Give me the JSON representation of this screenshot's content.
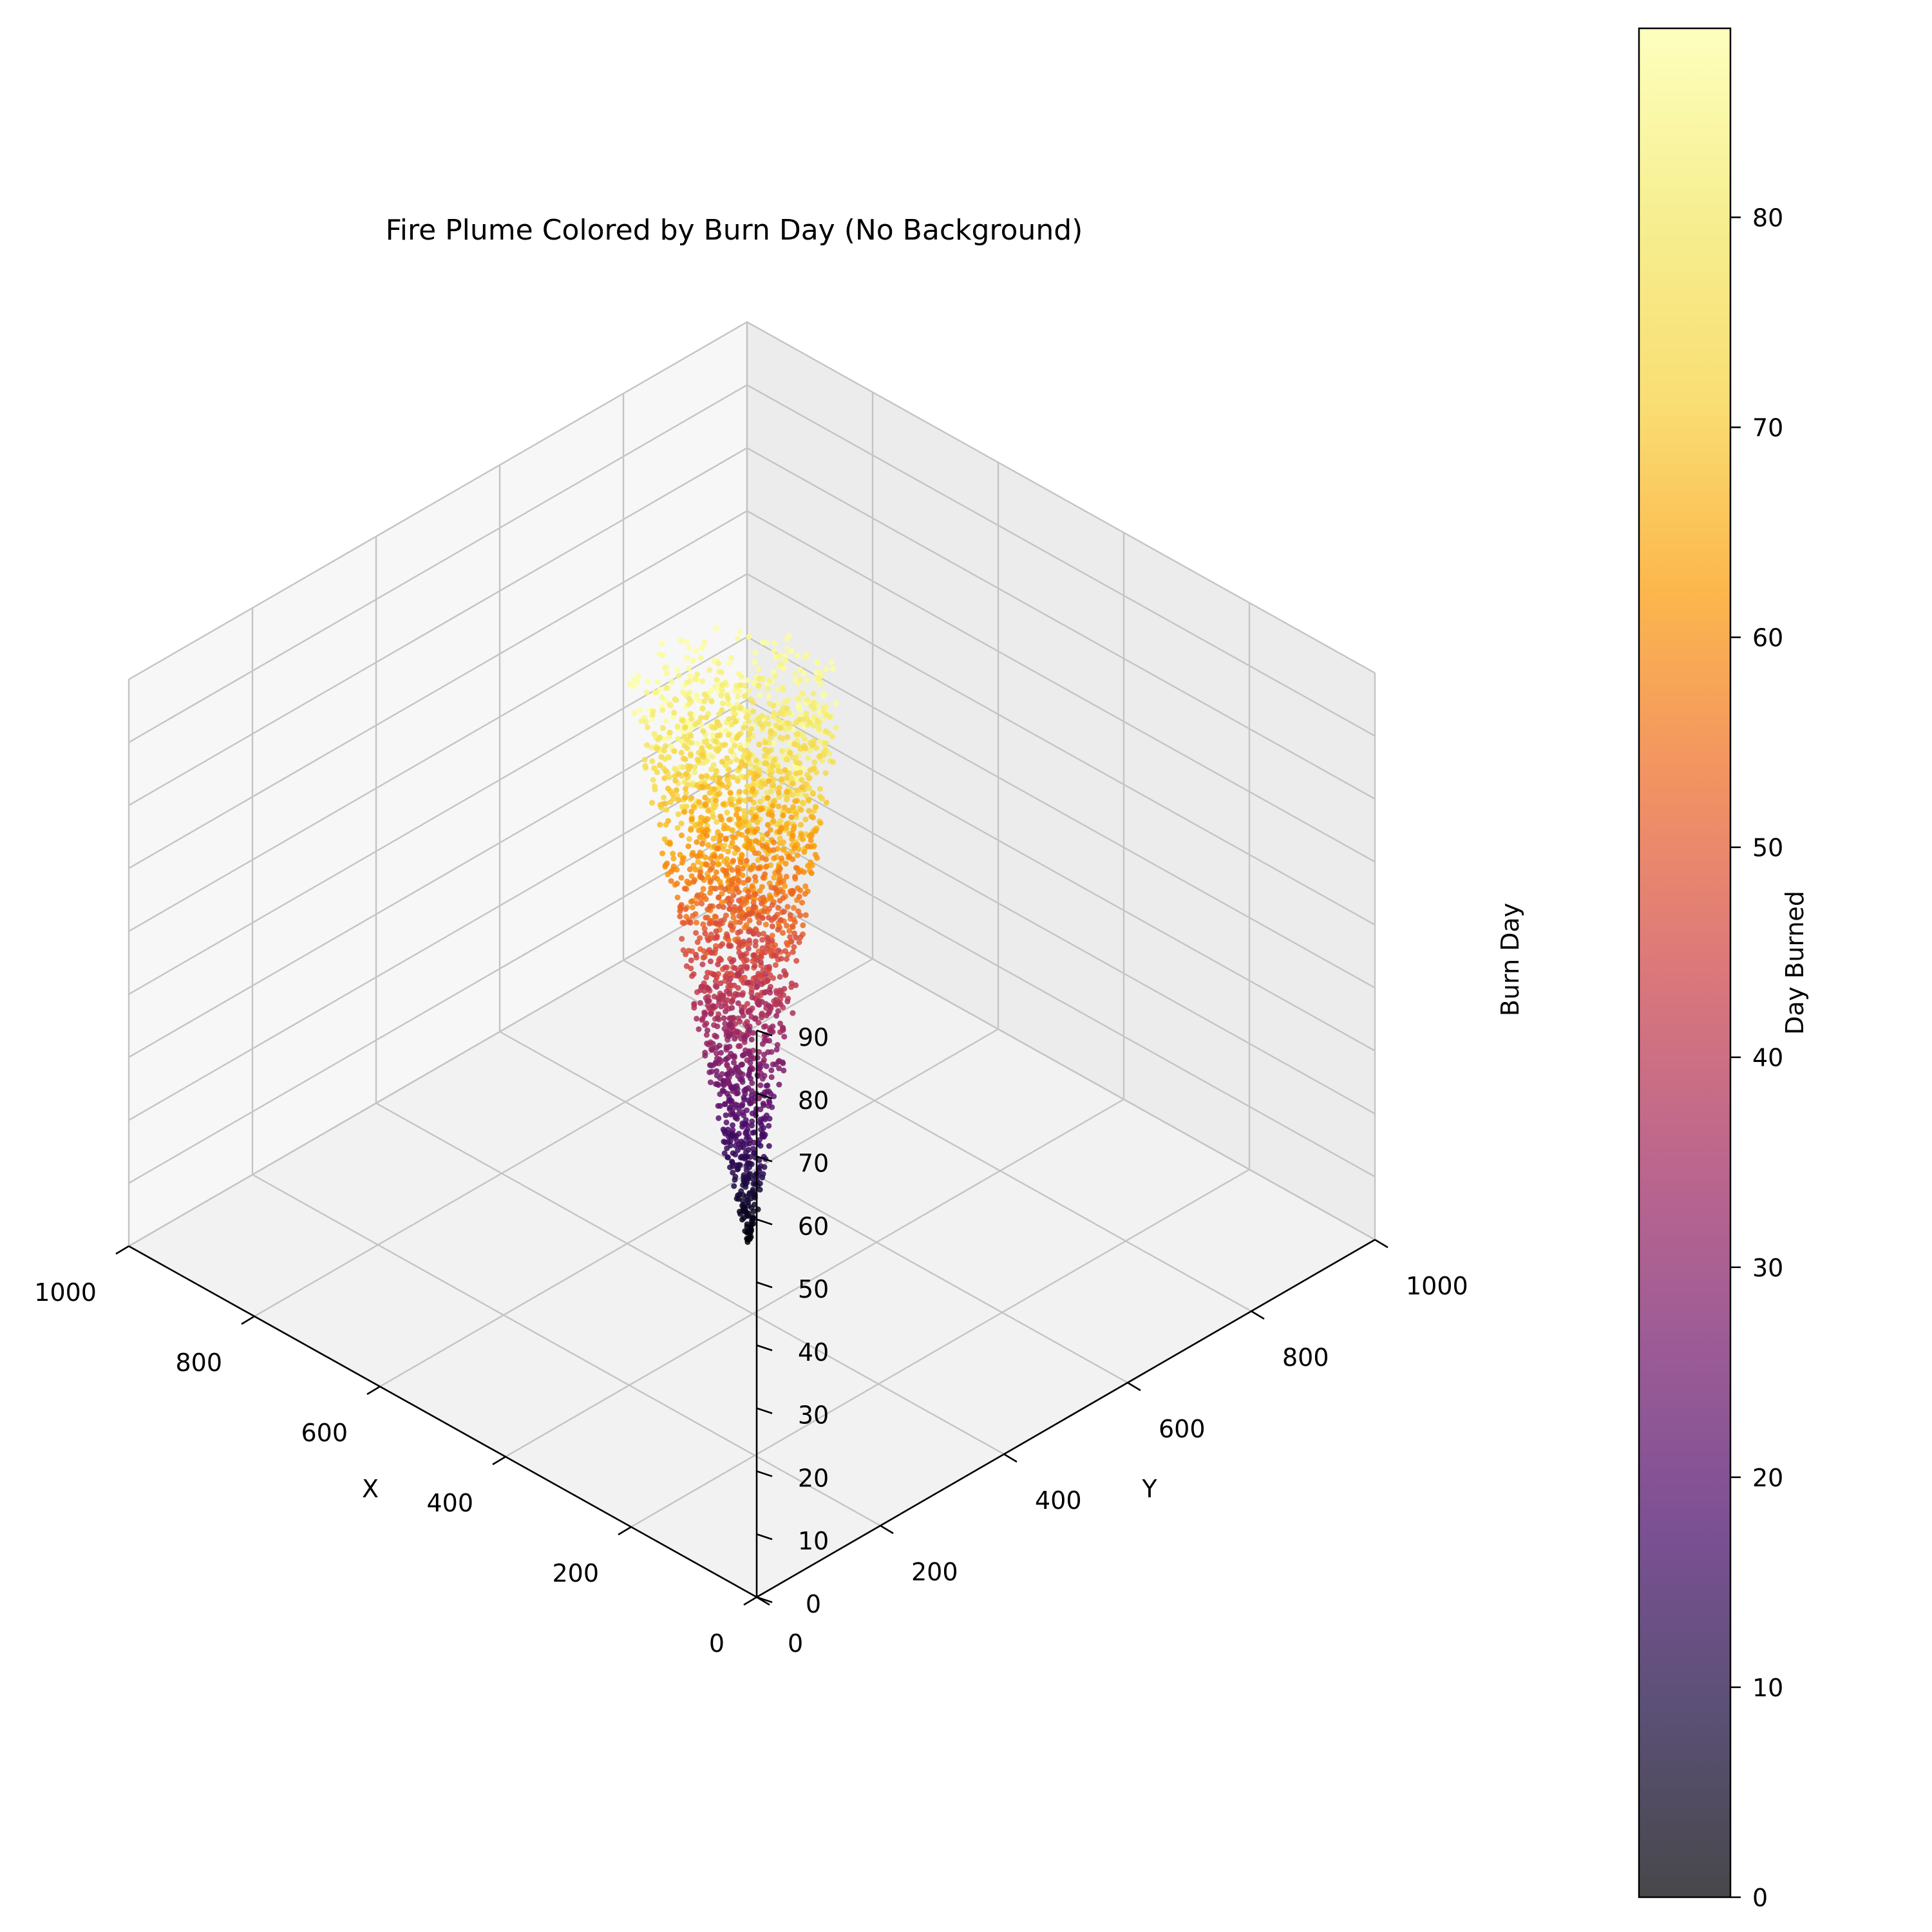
{
  "chart_data": {
    "type": "scatter",
    "projection": "3d",
    "title": "Fire Plume Colored by Burn Day (No Background)",
    "xlabel": "X",
    "ylabel": "Y",
    "zlabel": "Burn Day",
    "xlim": [
      0,
      1000
    ],
    "ylim": [
      0,
      1000
    ],
    "zlim": [
      0,
      90
    ],
    "x_ticks": [
      "0",
      "200",
      "400",
      "600",
      "800",
      "1000"
    ],
    "y_ticks": [
      "0",
      "200",
      "400",
      "600",
      "800",
      "1000"
    ],
    "z_ticks": [
      "0",
      "10",
      "20",
      "30",
      "40",
      "50",
      "60",
      "70",
      "80",
      "90"
    ],
    "grid": true,
    "colormap": "inferno",
    "colorbar": {
      "label": "Day Burned",
      "range": [
        0,
        89
      ],
      "ticks": [
        "0",
        "10",
        "20",
        "30",
        "40",
        "50",
        "60",
        "70",
        "80"
      ]
    },
    "plume": {
      "apex_xy": [
        505,
        500
      ],
      "apex_day": 0,
      "top_day": 89,
      "top_center_xy": [
        505,
        480
      ],
      "top_radius": 120,
      "outlier_cluster": {
        "x": 350,
        "y": 420,
        "day_range": [
          84,
          89
        ]
      }
    }
  }
}
